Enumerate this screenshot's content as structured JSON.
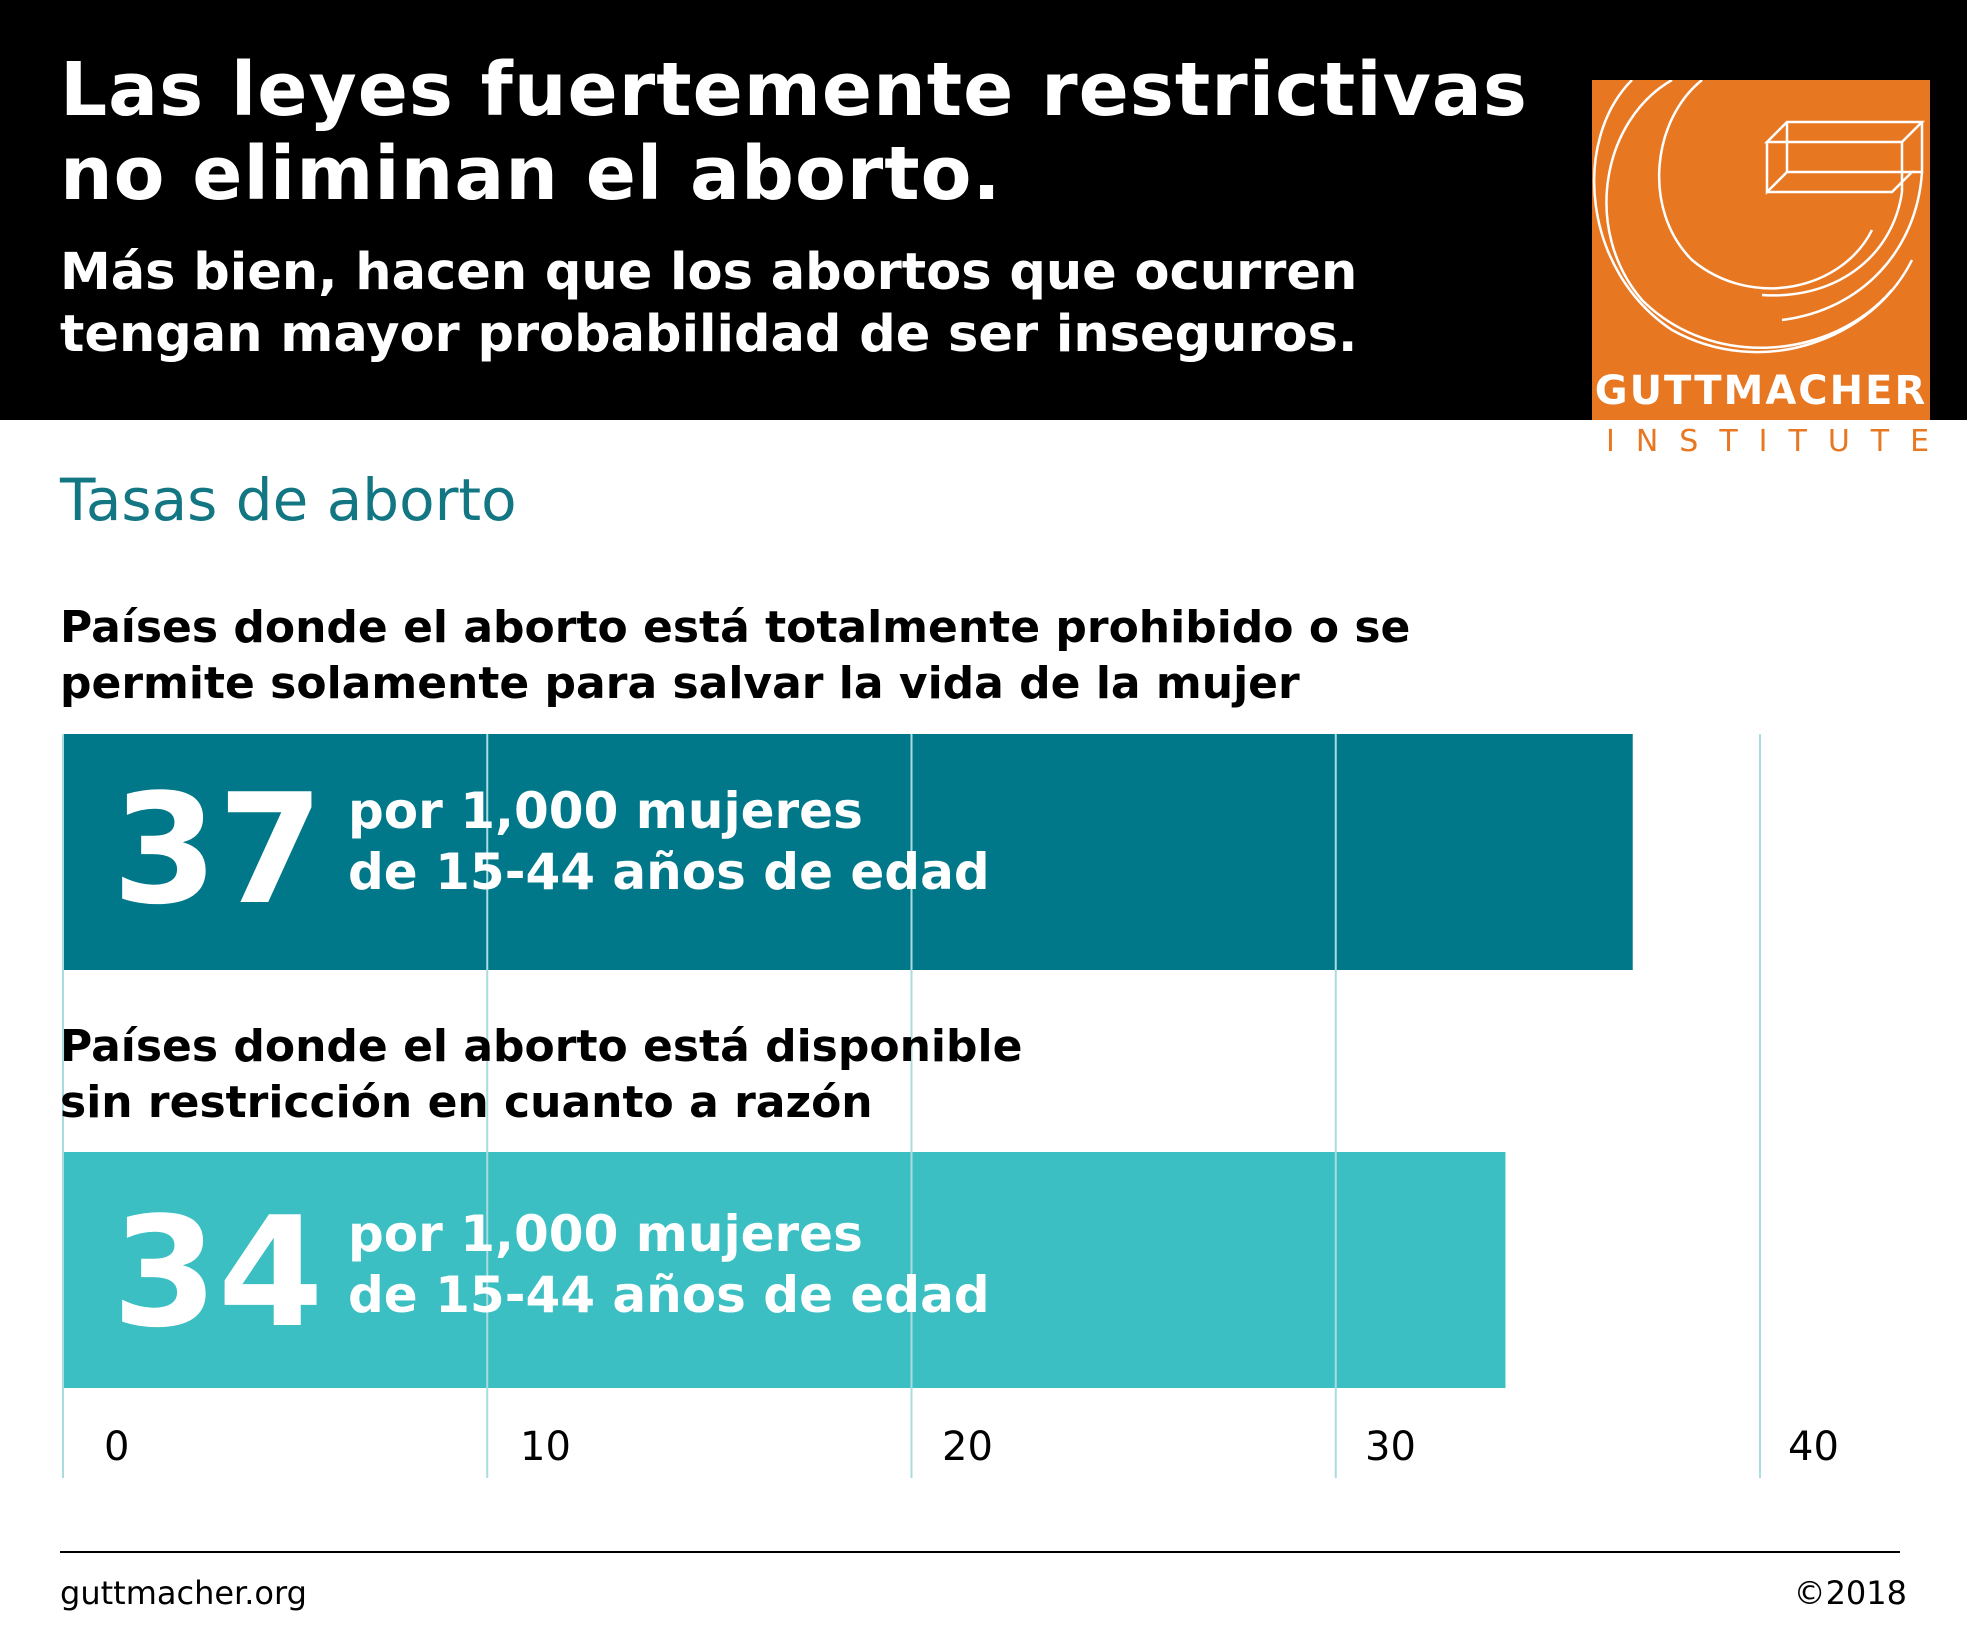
{
  "header": {
    "title": "Las leyes fuertemente restrictivas\nno eliminan el aborto.",
    "subtitle": "Más bien, hacen que los abortos que ocurren\ntengan mayor probabilidad de ser inseguros."
  },
  "logo": {
    "name": "GUTTMACHER",
    "sub": "INSTITUTE",
    "color": "#e87722"
  },
  "chart_data": {
    "type": "bar",
    "orientation": "horizontal",
    "title": "Tasas de aborto",
    "categories": [
      "Países donde el aborto está totalmente prohibido o se\npermite solamente para salvar la vida de la mujer",
      "Países donde el aborto está disponible\nsin restricción en cuanto a razón"
    ],
    "values": [
      37,
      34
    ],
    "value_labels": [
      "37",
      "34"
    ],
    "unit_label": "por 1,000 mujeres\nde 15-44 años de edad",
    "colors": [
      "#017889",
      "#3bbfc2"
    ],
    "xlim": [
      0,
      40
    ],
    "xticks": [
      0,
      10,
      20,
      30,
      40
    ],
    "grid": true,
    "grid_color": "#a9dcdf"
  },
  "footer": {
    "source": "guttmacher.org",
    "copyright": "©2018"
  }
}
